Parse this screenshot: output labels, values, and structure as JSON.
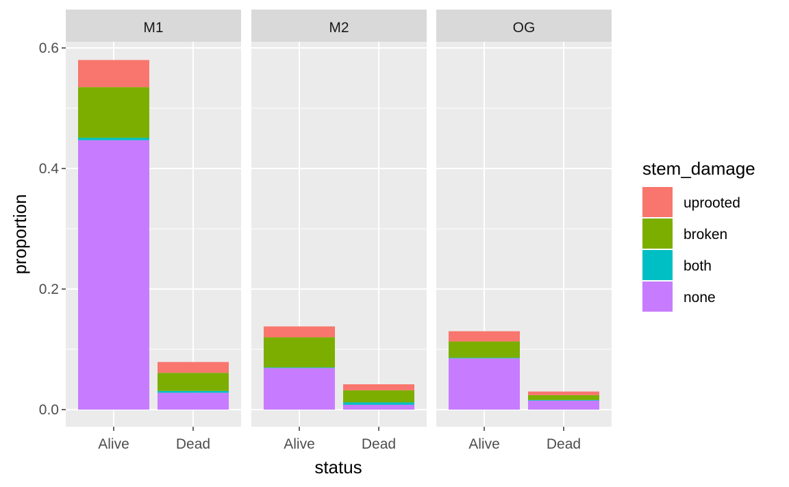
{
  "chart_data": {
    "type": "bar",
    "stacked": true,
    "facet_var_values": [
      "M1",
      "M2",
      "OG"
    ],
    "categories": [
      "Alive",
      "Dead"
    ],
    "xlabel": "status",
    "ylabel": "proportion",
    "ylim": [
      -0.03,
      0.6
    ],
    "yticks": [
      0.0,
      0.2,
      0.4,
      0.6
    ],
    "ytick_labels": [
      "0.0",
      "0.2",
      "0.4",
      "0.6"
    ],
    "grid": true,
    "legend": {
      "title": "stem_damage",
      "position": "right",
      "entries": [
        "uprooted",
        "broken",
        "both",
        "none"
      ]
    },
    "colors": {
      "uprooted": "#F8766D",
      "broken": "#7CAE00",
      "both": "#00BFC4",
      "none": "#C77CFF",
      "panel_bg": "#EBEBEB",
      "strip_bg": "#D9D9D9"
    },
    "stack_order": [
      "none",
      "both",
      "broken",
      "uprooted"
    ],
    "facets": [
      {
        "name": "M1",
        "bars": [
          {
            "category": "Alive",
            "values": {
              "none": 0.447,
              "both": 0.004,
              "broken": 0.084,
              "uprooted": 0.045
            }
          },
          {
            "category": "Dead",
            "values": {
              "none": 0.028,
              "both": 0.003,
              "broken": 0.03,
              "uprooted": 0.018
            }
          }
        ]
      },
      {
        "name": "M2",
        "bars": [
          {
            "category": "Alive",
            "values": {
              "none": 0.069,
              "both": 0.001,
              "broken": 0.05,
              "uprooted": 0.018
            }
          },
          {
            "category": "Dead",
            "values": {
              "none": 0.008,
              "both": 0.004,
              "broken": 0.02,
              "uprooted": 0.01
            }
          }
        ]
      },
      {
        "name": "OG",
        "bars": [
          {
            "category": "Alive",
            "values": {
              "none": 0.085,
              "both": 0.001,
              "broken": 0.027,
              "uprooted": 0.017
            }
          },
          {
            "category": "Dead",
            "values": {
              "none": 0.015,
              "both": 0.001,
              "broken": 0.008,
              "uprooted": 0.006
            }
          }
        ]
      }
    ]
  }
}
